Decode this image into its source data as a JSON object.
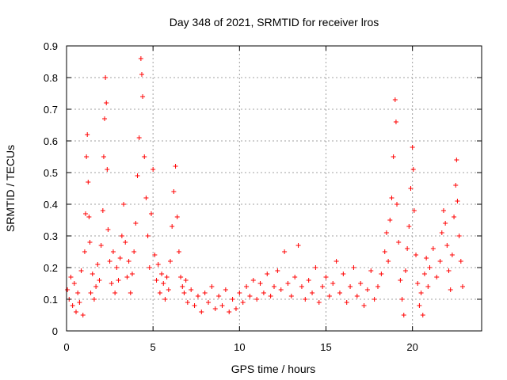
{
  "chart_data": {
    "type": "scatter",
    "title": "Day 348 of 2021, SRMTID for receiver lros",
    "xlabel": "GPS time / hours",
    "ylabel": "SRMTID / TECUs",
    "xlim": [
      0,
      24
    ],
    "ylim": [
      0,
      0.9
    ],
    "xticks": [
      0,
      5,
      10,
      15,
      20
    ],
    "xtick_labels": [
      "0",
      "5",
      "10",
      "15",
      "20"
    ],
    "yticks": [
      0,
      0.1,
      0.2,
      0.3,
      0.4,
      0.5,
      0.6,
      0.7,
      0.8,
      0.9
    ],
    "ytick_labels": [
      "0",
      "0.1",
      "0.2",
      "0.3",
      "0.4",
      "0.5",
      "0.6",
      "0.7",
      "0.8",
      "0.9"
    ],
    "grid": true,
    "marker": "+",
    "series": [
      {
        "name": "SRMTID",
        "color": "#ff0000",
        "points": [
          [
            0.05,
            0.13
          ],
          [
            0.15,
            0.1
          ],
          [
            0.25,
            0.17
          ],
          [
            0.35,
            0.08
          ],
          [
            0.45,
            0.15
          ],
          [
            0.55,
            0.06
          ],
          [
            0.65,
            0.12
          ],
          [
            0.75,
            0.09
          ],
          [
            0.85,
            0.19
          ],
          [
            0.95,
            0.05
          ],
          [
            1.05,
            0.25
          ],
          [
            1.1,
            0.37
          ],
          [
            1.15,
            0.55
          ],
          [
            1.2,
            0.62
          ],
          [
            1.25,
            0.47
          ],
          [
            1.3,
            0.36
          ],
          [
            1.35,
            0.28
          ],
          [
            1.4,
            0.12
          ],
          [
            1.5,
            0.18
          ],
          [
            1.6,
            0.1
          ],
          [
            1.7,
            0.14
          ],
          [
            1.8,
            0.21
          ],
          [
            1.9,
            0.16
          ],
          [
            2.0,
            0.27
          ],
          [
            2.1,
            0.38
          ],
          [
            2.15,
            0.55
          ],
          [
            2.2,
            0.67
          ],
          [
            2.25,
            0.8
          ],
          [
            2.3,
            0.72
          ],
          [
            2.35,
            0.51
          ],
          [
            2.4,
            0.32
          ],
          [
            2.5,
            0.22
          ],
          [
            2.6,
            0.15
          ],
          [
            2.7,
            0.25
          ],
          [
            2.8,
            0.12
          ],
          [
            2.9,
            0.2
          ],
          [
            3.0,
            0.16
          ],
          [
            3.1,
            0.23
          ],
          [
            3.2,
            0.3
          ],
          [
            3.3,
            0.4
          ],
          [
            3.4,
            0.28
          ],
          [
            3.5,
            0.17
          ],
          [
            3.6,
            0.22
          ],
          [
            3.7,
            0.12
          ],
          [
            3.8,
            0.18
          ],
          [
            3.9,
            0.25
          ],
          [
            4.0,
            0.34
          ],
          [
            4.1,
            0.49
          ],
          [
            4.2,
            0.61
          ],
          [
            4.3,
            0.86
          ],
          [
            4.35,
            0.81
          ],
          [
            4.4,
            0.74
          ],
          [
            4.5,
            0.55
          ],
          [
            4.6,
            0.42
          ],
          [
            4.7,
            0.3
          ],
          [
            4.8,
            0.2
          ],
          [
            4.9,
            0.37
          ],
          [
            5.0,
            0.51
          ],
          [
            5.1,
            0.24
          ],
          [
            5.2,
            0.16
          ],
          [
            5.3,
            0.21
          ],
          [
            5.4,
            0.12
          ],
          [
            5.5,
            0.18
          ],
          [
            5.6,
            0.15
          ],
          [
            5.7,
            0.1
          ],
          [
            5.8,
            0.17
          ],
          [
            5.9,
            0.13
          ],
          [
            6.0,
            0.22
          ],
          [
            6.1,
            0.33
          ],
          [
            6.2,
            0.44
          ],
          [
            6.3,
            0.52
          ],
          [
            6.4,
            0.36
          ],
          [
            6.5,
            0.25
          ],
          [
            6.6,
            0.17
          ],
          [
            6.7,
            0.14
          ],
          [
            6.8,
            0.12
          ],
          [
            6.9,
            0.16
          ],
          [
            7.0,
            0.09
          ],
          [
            7.2,
            0.13
          ],
          [
            7.4,
            0.08
          ],
          [
            7.6,
            0.11
          ],
          [
            7.8,
            0.06
          ],
          [
            8.0,
            0.12
          ],
          [
            8.2,
            0.09
          ],
          [
            8.4,
            0.14
          ],
          [
            8.6,
            0.07
          ],
          [
            8.8,
            0.11
          ],
          [
            9.0,
            0.08
          ],
          [
            9.2,
            0.13
          ],
          [
            9.4,
            0.06
          ],
          [
            9.6,
            0.1
          ],
          [
            9.8,
            0.07
          ],
          [
            10.0,
            0.12
          ],
          [
            10.2,
            0.09
          ],
          [
            10.4,
            0.14
          ],
          [
            10.6,
            0.11
          ],
          [
            10.8,
            0.16
          ],
          [
            11.0,
            0.1
          ],
          [
            11.2,
            0.15
          ],
          [
            11.4,
            0.12
          ],
          [
            11.6,
            0.18
          ],
          [
            11.8,
            0.11
          ],
          [
            12.0,
            0.14
          ],
          [
            12.2,
            0.19
          ],
          [
            12.4,
            0.13
          ],
          [
            12.6,
            0.25
          ],
          [
            12.8,
            0.15
          ],
          [
            13.0,
            0.11
          ],
          [
            13.2,
            0.17
          ],
          [
            13.4,
            0.27
          ],
          [
            13.6,
            0.14
          ],
          [
            13.8,
            0.1
          ],
          [
            14.0,
            0.16
          ],
          [
            14.2,
            0.12
          ],
          [
            14.4,
            0.2
          ],
          [
            14.6,
            0.09
          ],
          [
            14.8,
            0.14
          ],
          [
            15.0,
            0.17
          ],
          [
            15.2,
            0.11
          ],
          [
            15.4,
            0.15
          ],
          [
            15.6,
            0.22
          ],
          [
            15.8,
            0.12
          ],
          [
            16.0,
            0.18
          ],
          [
            16.2,
            0.09
          ],
          [
            16.4,
            0.14
          ],
          [
            16.6,
            0.2
          ],
          [
            16.8,
            0.11
          ],
          [
            17.0,
            0.15
          ],
          [
            17.2,
            0.08
          ],
          [
            17.4,
            0.13
          ],
          [
            17.6,
            0.19
          ],
          [
            17.8,
            0.1
          ],
          [
            18.0,
            0.14
          ],
          [
            18.2,
            0.18
          ],
          [
            18.4,
            0.25
          ],
          [
            18.5,
            0.31
          ],
          [
            18.6,
            0.22
          ],
          [
            18.7,
            0.35
          ],
          [
            18.8,
            0.42
          ],
          [
            18.9,
            0.55
          ],
          [
            19.0,
            0.73
          ],
          [
            19.05,
            0.66
          ],
          [
            19.1,
            0.4
          ],
          [
            19.2,
            0.28
          ],
          [
            19.3,
            0.16
          ],
          [
            19.4,
            0.1
          ],
          [
            19.5,
            0.05
          ],
          [
            19.6,
            0.19
          ],
          [
            19.7,
            0.26
          ],
          [
            19.8,
            0.33
          ],
          [
            19.9,
            0.45
          ],
          [
            20.0,
            0.58
          ],
          [
            20.05,
            0.51
          ],
          [
            20.1,
            0.38
          ],
          [
            20.2,
            0.24
          ],
          [
            20.3,
            0.15
          ],
          [
            20.4,
            0.08
          ],
          [
            20.5,
            0.12
          ],
          [
            20.6,
            0.05
          ],
          [
            20.7,
            0.18
          ],
          [
            20.8,
            0.23
          ],
          [
            20.9,
            0.14
          ],
          [
            21.0,
            0.2
          ],
          [
            21.2,
            0.26
          ],
          [
            21.4,
            0.17
          ],
          [
            21.6,
            0.22
          ],
          [
            21.7,
            0.31
          ],
          [
            21.8,
            0.38
          ],
          [
            21.9,
            0.34
          ],
          [
            22.0,
            0.27
          ],
          [
            22.1,
            0.19
          ],
          [
            22.2,
            0.13
          ],
          [
            22.3,
            0.24
          ],
          [
            22.4,
            0.36
          ],
          [
            22.5,
            0.46
          ],
          [
            22.55,
            0.54
          ],
          [
            22.6,
            0.41
          ],
          [
            22.7,
            0.3
          ],
          [
            22.8,
            0.22
          ],
          [
            22.9,
            0.14
          ]
        ]
      }
    ]
  }
}
